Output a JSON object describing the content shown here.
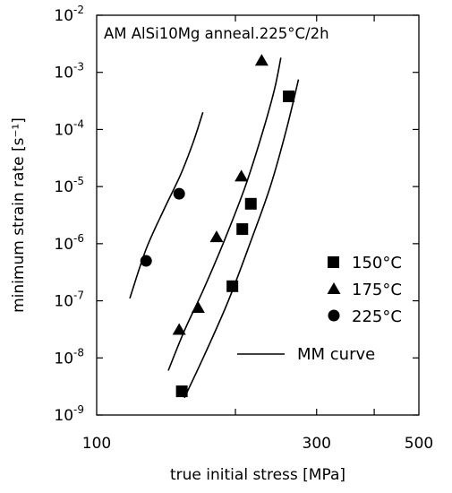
{
  "chart_data": {
    "type": "scatter",
    "title": "AM AlSi10Mg anneal.225°C/2h",
    "xlabel": "true initial stress [MPa]",
    "ylabel": "minimum strain rate [s⁻¹]",
    "x_scale": "log",
    "y_scale": "log",
    "xlim": [
      100,
      500
    ],
    "ylim": [
      1e-09,
      0.01
    ],
    "x_tick_labels": [
      "100",
      "300",
      "500"
    ],
    "y_tick_labels": [
      {
        "base": "10",
        "exp": "-9"
      },
      {
        "base": "10",
        "exp": "-8"
      },
      {
        "base": "10",
        "exp": "-7"
      },
      {
        "base": "10",
        "exp": "-6"
      },
      {
        "base": "10",
        "exp": "-5"
      },
      {
        "base": "10",
        "exp": "-4"
      },
      {
        "base": "10",
        "exp": "-3"
      },
      {
        "base": "10",
        "exp": "-2"
      }
    ],
    "grid": false,
    "legend_position": "right",
    "series": [
      {
        "name": "150°C",
        "marker": "square",
        "points": [
          [
            153,
            2.6e-09
          ],
          [
            197,
            1.8e-07
          ],
          [
            207,
            1.8e-06
          ],
          [
            216,
            5e-06
          ],
          [
            261,
            0.00038
          ]
        ]
      },
      {
        "name": "175°C",
        "marker": "triangle",
        "points": [
          [
            151,
            3.1e-08
          ],
          [
            166,
            7.5e-08
          ],
          [
            182,
            1.3e-06
          ],
          [
            206,
            1.5e-05
          ],
          [
            228,
            0.0016
          ]
        ]
      },
      {
        "name": "225°C",
        "marker": "circle",
        "points": [
          [
            128,
            5e-07
          ],
          [
            151,
            7.5e-06
          ]
        ]
      }
    ],
    "curves": [
      {
        "name": "MM curve",
        "points": [
          [
            118,
            1.1e-07
          ],
          [
            128,
            8e-07
          ],
          [
            140,
            4e-06
          ],
          [
            152,
            1.6e-05
          ],
          [
            162,
            6e-05
          ],
          [
            170,
            0.0002
          ]
        ]
      },
      {
        "name": "MM curve",
        "points": [
          [
            143,
            6e-09
          ],
          [
            155,
            3e-08
          ],
          [
            170,
            1.5e-07
          ],
          [
            188,
            1e-06
          ],
          [
            210,
            1e-05
          ],
          [
            230,
            0.0001
          ],
          [
            243,
            0.0005
          ],
          [
            251,
            0.0018
          ]
        ]
      },
      {
        "name": "MM curve",
        "points": [
          [
            155,
            2e-09
          ],
          [
            172,
            1.2e-08
          ],
          [
            193,
            1e-07
          ],
          [
            215,
            1e-06
          ],
          [
            238,
            1e-05
          ],
          [
            258,
            0.0001
          ],
          [
            274,
            0.00075
          ]
        ]
      }
    ],
    "legend_curve_label": "MM curve"
  }
}
